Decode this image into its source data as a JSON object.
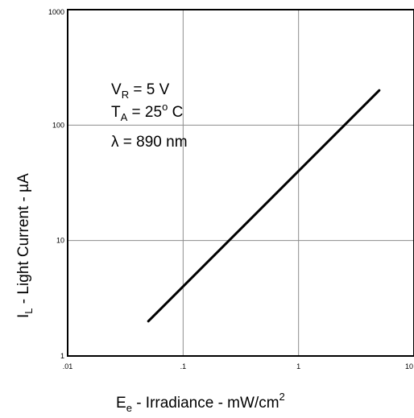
{
  "chart_data": {
    "type": "line",
    "xscale": "log",
    "yscale": "log",
    "xlim": [
      0.01,
      10
    ],
    "ylim": [
      1,
      1000
    ],
    "grid": true,
    "x_ticks": [
      {
        "value": 0.01,
        "label": ".01"
      },
      {
        "value": 0.1,
        "label": ".1"
      },
      {
        "value": 1,
        "label": "1"
      },
      {
        "value": 10,
        "label": "10"
      }
    ],
    "y_ticks": [
      {
        "value": 1,
        "label": "1"
      },
      {
        "value": 10,
        "label": "10"
      },
      {
        "value": 100,
        "label": "100"
      },
      {
        "value": 1000,
        "label": "1000"
      }
    ],
    "xlabel": {
      "main": "E",
      "sub": "e",
      "rest": " - Irradiance - mW/cm",
      "sup": "2"
    },
    "ylabel": {
      "main": "I",
      "sub": "L",
      "rest": " - Light Current - µA"
    },
    "annotations": {
      "vr": {
        "main": "V",
        "sub": "R",
        "rest": " = 5 V"
      },
      "ta": {
        "main": "T",
        "sub": "A",
        "rest": " = 25",
        "sup": "o",
        "tail": " C"
      },
      "lambda": "λ = 890 nm"
    },
    "series": [
      {
        "x": [
          0.05,
          5.0
        ],
        "y": [
          2.0,
          200.0
        ]
      }
    ]
  }
}
